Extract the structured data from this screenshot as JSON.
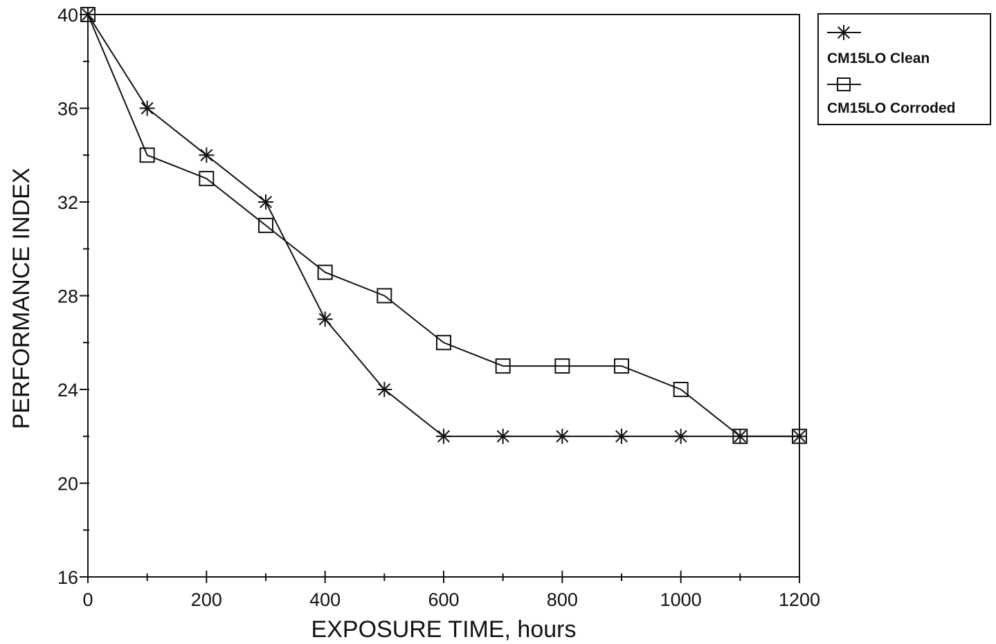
{
  "chart_data": {
    "type": "line",
    "title": "",
    "xlabel": "EXPOSURE TIME, hours",
    "ylabel": "PERFORMANCE INDEX",
    "xlim": [
      0,
      1200
    ],
    "ylim": [
      16,
      40
    ],
    "x_ticks": [
      0,
      200,
      400,
      600,
      800,
      1000,
      1200
    ],
    "x_minor_ticks": [
      100,
      300,
      500,
      700,
      900,
      1100
    ],
    "y_ticks": [
      16,
      20,
      24,
      28,
      32,
      36,
      40
    ],
    "y_minor_ticks": [
      18,
      22,
      26,
      30,
      34,
      38
    ],
    "grid": false,
    "legend_position": "top-right, outside plot",
    "line_color": "#111111",
    "series": [
      {
        "name": "CM15LO Clean",
        "marker": "asterisk",
        "x": [
          0,
          100,
          200,
          300,
          400,
          500,
          600,
          700,
          800,
          900,
          1000,
          1100,
          1200
        ],
        "y": [
          40,
          36,
          34,
          32,
          27,
          24,
          22,
          22,
          22,
          22,
          22,
          22,
          22
        ]
      },
      {
        "name": "CM15LO Corroded",
        "marker": "square",
        "x": [
          0,
          100,
          200,
          300,
          400,
          500,
          600,
          700,
          800,
          900,
          1000,
          1100,
          1200
        ],
        "y": [
          40,
          34,
          33,
          31,
          29,
          28,
          26,
          25,
          25,
          25,
          24,
          22,
          22
        ]
      }
    ]
  }
}
